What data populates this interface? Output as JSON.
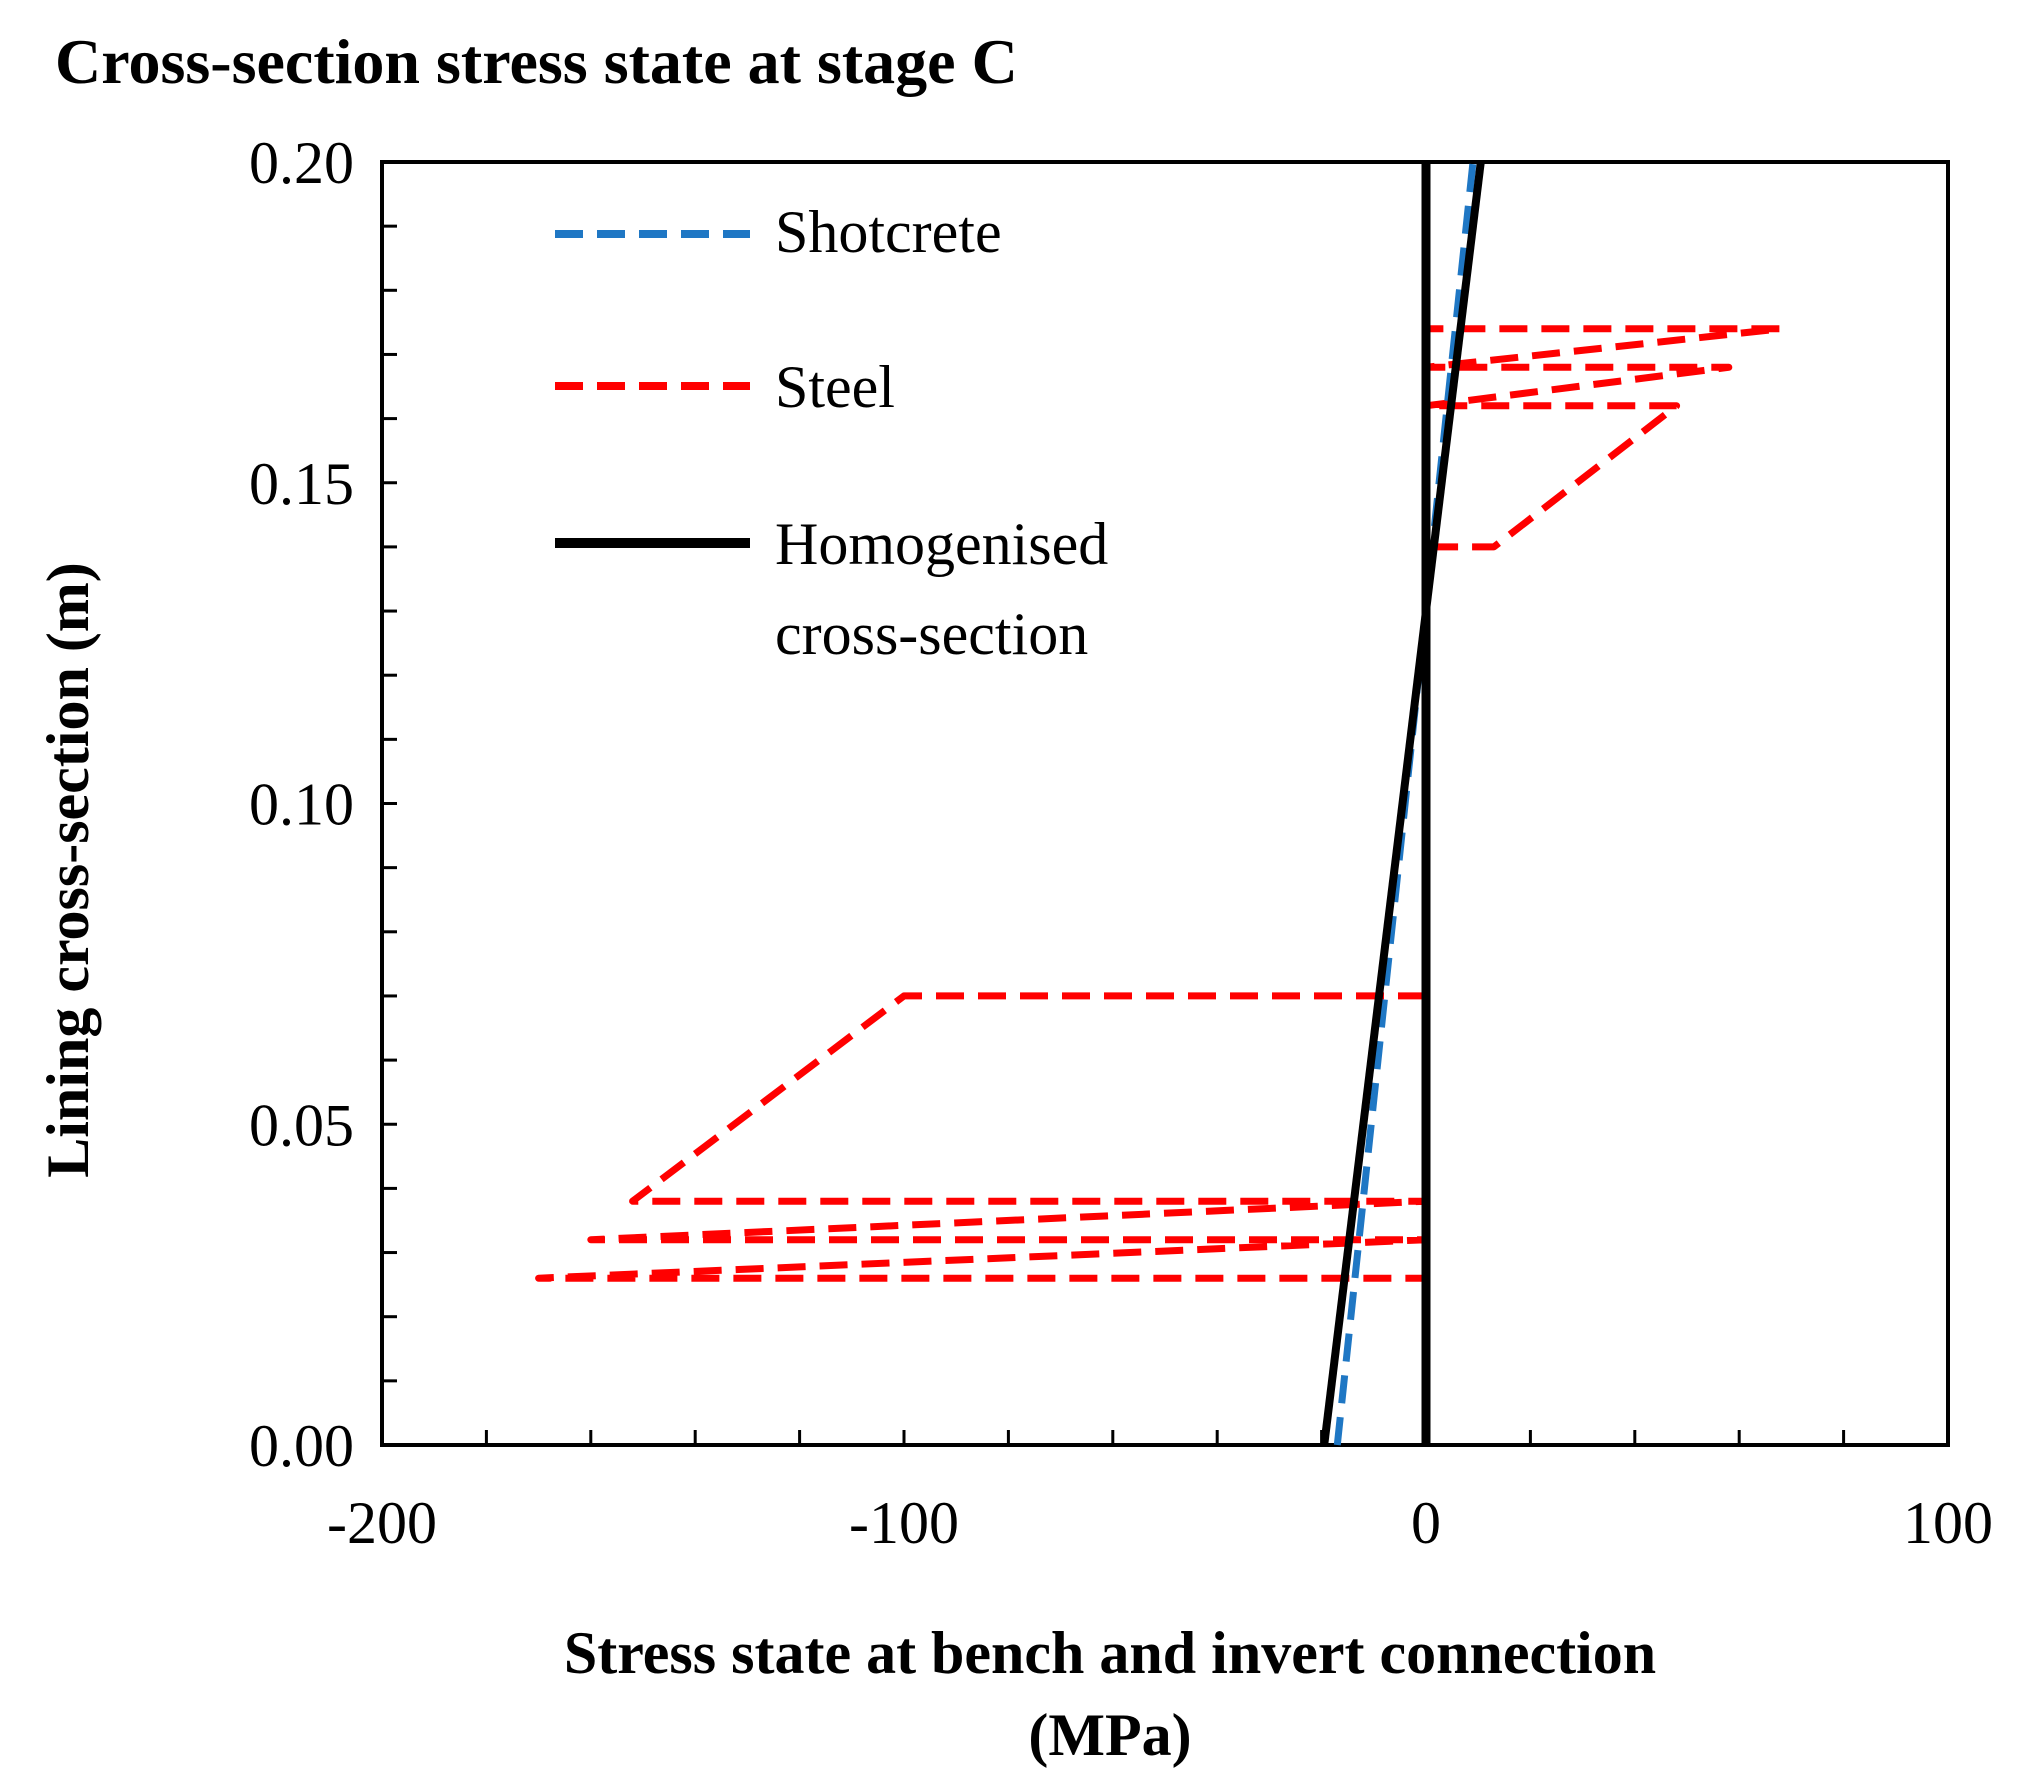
{
  "chart_data": {
    "type": "line",
    "title": "Cross-section stress state at stage C",
    "xlabel_line1": "Stress state at bench and invert connection",
    "xlabel_line2": "(MPa)",
    "ylabel": "Lining cross-section (m)",
    "xlim": [
      -200,
      100
    ],
    "ylim": [
      0,
      0.2
    ],
    "x_ticks": [
      -200,
      -100,
      0,
      100
    ],
    "x_tick_labels": [
      "-200",
      "-100",
      "0",
      "100"
    ],
    "x_minor_step": 20,
    "y_ticks": [
      0,
      0.05,
      0.1,
      0.15,
      0.2
    ],
    "y_tick_labels": [
      "0.00",
      "0.05",
      "0.10",
      "0.15",
      "0.20"
    ],
    "y_minor_step": 0.01,
    "grid": false,
    "legend_position": "top-left",
    "series": [
      {
        "name": "Shotcrete",
        "legend_label": "Shotcrete",
        "color": "#1f77c4",
        "style": "dashed",
        "points": [
          [
            -17,
            0.0
          ],
          [
            9,
            0.2
          ]
        ]
      },
      {
        "name": "Steel",
        "legend_label": "Steel",
        "color": "#ff0000",
        "style": "dashed",
        "points": [
          [
            0,
            0.07
          ],
          [
            -100,
            0.07
          ],
          [
            -152,
            0.038
          ],
          [
            0,
            0.038
          ],
          [
            -160,
            0.032
          ],
          [
            0,
            0.032
          ],
          [
            -170,
            0.026
          ],
          [
            0,
            0.026
          ],
          [
            0,
            0.14
          ],
          [
            13,
            0.14
          ],
          [
            48,
            0.162
          ],
          [
            0,
            0.162
          ],
          [
            58,
            0.168
          ],
          [
            0,
            0.168
          ],
          [
            68,
            0.174
          ],
          [
            0,
            0.174
          ]
        ]
      },
      {
        "name": "Homogenised cross-section",
        "legend_label": "Homogenised",
        "legend_label_line2": "cross-section",
        "color": "#000000",
        "style": "solid",
        "points": [
          [
            -19.5,
            0.0
          ],
          [
            10.5,
            0.2
          ]
        ]
      }
    ],
    "reference_line": {
      "x": 0,
      "color": "#000000"
    }
  }
}
